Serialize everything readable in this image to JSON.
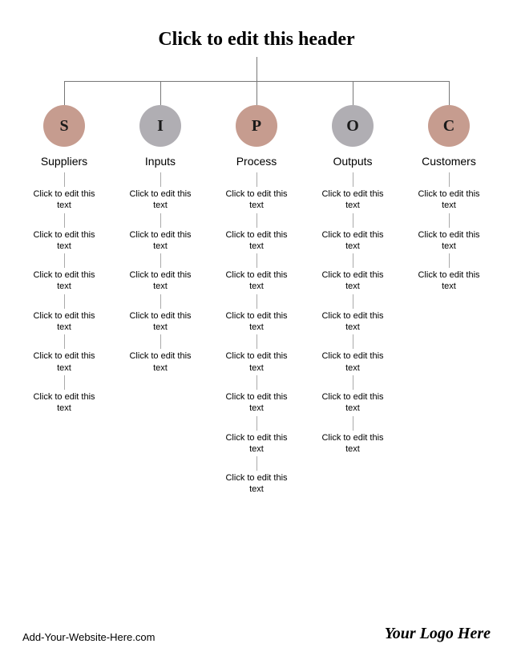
{
  "header": "Click to edit this header",
  "footer": {
    "website": "Add-Your-Website-Here.com",
    "logo": "Your Logo Here"
  },
  "diagram": {
    "type": "tree",
    "background_color": "#ffffff",
    "connector_color": "#777777",
    "item_connector_color": "#aaaaaa",
    "header_fontsize": 24,
    "label_fontsize": 14,
    "item_fontsize": 11,
    "circle_diameter": 52,
    "columns": [
      {
        "letter": "S",
        "label": "Suppliers",
        "color": "#c69c8f",
        "items": [
          "Click to edit this text",
          "Click to edit this text",
          "Click to edit this text",
          "Click to edit this text",
          "Click to edit this text",
          "Click to edit this text"
        ]
      },
      {
        "letter": "I",
        "label": "Inputs",
        "color": "#b0aeb3",
        "items": [
          "Click to edit this text",
          "Click to edit this text",
          "Click to edit this text",
          "Click to edit this text",
          "Click to edit this text"
        ]
      },
      {
        "letter": "P",
        "label": "Process",
        "color": "#c69c8f",
        "items": [
          "Click to edit this text",
          "Click to edit this text",
          "Click to edit this text",
          "Click to edit this text",
          "Click to edit this text",
          "Click to edit this text",
          "Click to edit this text",
          "Click to edit this text"
        ]
      },
      {
        "letter": "O",
        "label": "Outputs",
        "color": "#b0aeb3",
        "items": [
          "Click to edit this text",
          "Click to edit this text",
          "Click to edit this text",
          "Click to edit this text",
          "Click to edit this text",
          "Click to edit this text",
          "Click to edit this text"
        ]
      },
      {
        "letter": "C",
        "label": "Customers",
        "color": "#c69c8f",
        "items": [
          "Click to edit this text",
          "Click to edit this text",
          "Click to edit this text"
        ]
      }
    ]
  }
}
